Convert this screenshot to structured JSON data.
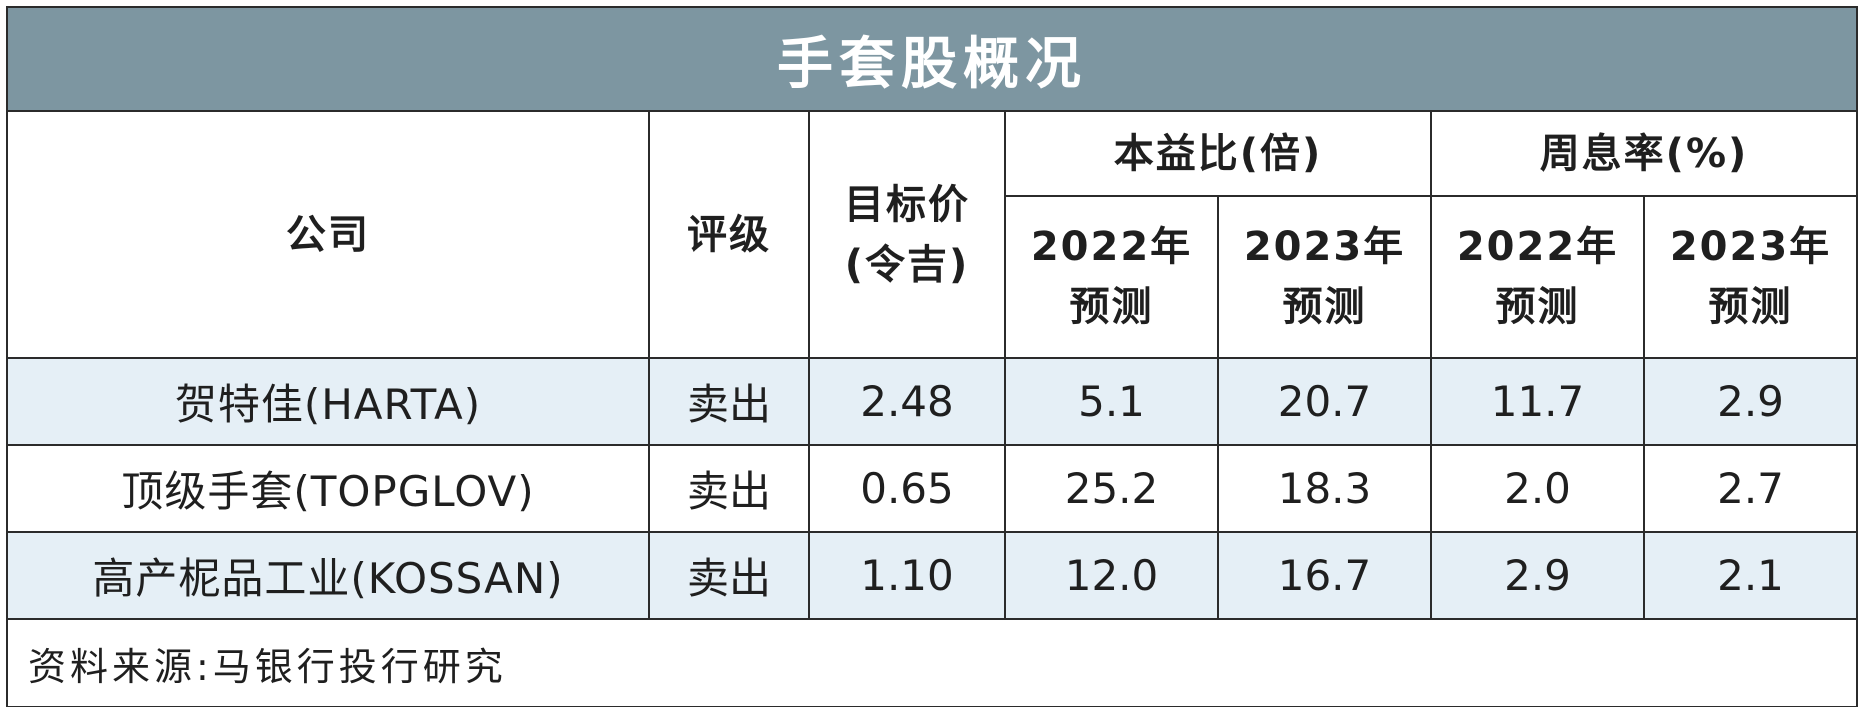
{
  "title": "手套股概况",
  "headers": {
    "company": "公司",
    "rating": "评级",
    "target_price_line1": "目标价",
    "target_price_line2": "(令吉)",
    "pe_group": "本益比(倍)",
    "yield_group": "周息率(%)",
    "pe_2022_year": "2022年",
    "pe_2022_forecast": "预测",
    "pe_2023_year": "2023年",
    "pe_2023_forecast": "预测",
    "yield_2022_year": "2022年",
    "yield_2022_forecast": "预测",
    "yield_2023_year": "2023年",
    "yield_2023_forecast": "预测"
  },
  "rows": [
    {
      "company": "贺特佳(HARTA)",
      "rating": "卖出",
      "target_price": "2.48",
      "pe_2022": "5.1",
      "pe_2023": "20.7",
      "yield_2022": "11.7",
      "yield_2023": "2.9"
    },
    {
      "company": "顶级手套(TOPGLOV)",
      "rating": "卖出",
      "target_price": "0.65",
      "pe_2022": "25.2",
      "pe_2023": "18.3",
      "yield_2022": "2.0",
      "yield_2023": "2.7"
    },
    {
      "company": "高产柅品工业(KOSSAN)",
      "rating": "卖出",
      "target_price": "1.10",
      "pe_2022": "12.0",
      "pe_2023": "16.7",
      "yield_2022": "2.9",
      "yield_2023": "2.1"
    }
  ],
  "source": "资料来源:马银行投行研究",
  "colors": {
    "title_bg": "#7d96a1",
    "row_shade": "#e5eff6",
    "border": "#2b2b2b"
  }
}
